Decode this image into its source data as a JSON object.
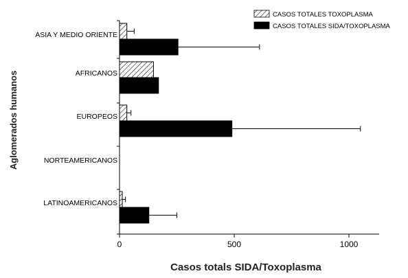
{
  "chart_data": {
    "type": "bar",
    "orientation": "horizontal",
    "categories": [
      "ASIA Y MEDIO ORIENTE",
      "AFRICANOS",
      "EUROPEOS",
      "NORTEAMERICANOS",
      "LATINOAMERICANOS"
    ],
    "series": [
      {
        "name": "CASOS TOTALES TOXOPLASMA",
        "pattern": "diagonal-hatch",
        "color": "#ffffff",
        "values": [
          32,
          148,
          32,
          0,
          12
        ],
        "error_upper": [
          64,
          30,
          50,
          0,
          26
        ]
      },
      {
        "name": "CASOS TOTALES SIDA/TOXOPLASMA",
        "pattern": "solid",
        "color": "#000000",
        "values": [
          255,
          170,
          490,
          0,
          128
        ],
        "error_upper": [
          610,
          0,
          1050,
          0,
          250
        ]
      }
    ],
    "xlabel": "Casos totals SIDA/Toxoplasma",
    "ylabel": "Aglomerados humanos",
    "xlim": [
      0,
      1130
    ],
    "xticks": [
      "0",
      "500",
      "1000"
    ],
    "legend_position": "top-right",
    "grid": false
  }
}
